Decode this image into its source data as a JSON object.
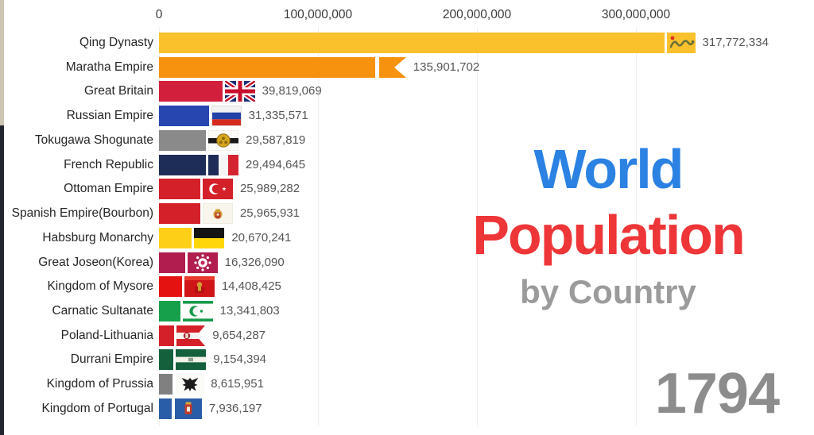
{
  "chart_data": {
    "type": "bar",
    "orientation": "horizontal",
    "title": "World Population by Country",
    "title_parts": {
      "line1": "World",
      "line2": "Population",
      "line3": "by Country"
    },
    "year": "1794",
    "axis": {
      "ticks": [
        {
          "label": "0",
          "value": 0
        },
        {
          "label": "100,000,000",
          "value": 100000000
        },
        {
          "label": "200,000,000",
          "value": 200000000
        },
        {
          "label": "300,000,000",
          "value": 300000000
        }
      ],
      "max_value": 350000000,
      "grid": true,
      "legend": "none"
    },
    "categories": [
      "Qing Dynasty",
      "Maratha Empire",
      "Great Britain",
      "Russian Empire",
      "Tokugawa Shogunate",
      "French Republic",
      "Ottoman Empire",
      "Spanish Empire(Bourbon)",
      "Habsburg Monarchy",
      "Great Joseon(Korea)",
      "Kingdom of Mysore",
      "Carnatic Sultanate",
      "Poland-Lithuania",
      "Durrani Empire",
      "Kingdom of Prussia",
      "Kingdom of Portugal"
    ],
    "values": [
      317772334,
      135901702,
      39819069,
      31335571,
      29587819,
      29494645,
      25989282,
      25965931,
      20670241,
      16326090,
      14408425,
      13341803,
      9654287,
      9154394,
      8615951,
      7936197
    ],
    "bars": [
      {
        "label": "Qing Dynasty",
        "value": 317772334,
        "value_label": "317,772,334",
        "color": "#fbc12d",
        "flag": "qing-dragon-flag"
      },
      {
        "label": "Maratha Empire",
        "value": 135901702,
        "value_label": "135,901,702",
        "color": "#f7920f",
        "flag": "maratha-swallowtail-flag"
      },
      {
        "label": "Great Britain",
        "value": 39819069,
        "value_label": "39,819,069",
        "color": "#d21f3c",
        "flag": "union-jack-flag"
      },
      {
        "label": "Russian Empire",
        "value": 31335571,
        "value_label": "31,335,571",
        "color": "#2746b0",
        "flag": "russia-tricolor-flag"
      },
      {
        "label": "Tokugawa Shogunate",
        "value": 29587819,
        "value_label": "29,587,819",
        "color": "#8a8a8a",
        "flag": "tokugawa-mon-flag"
      },
      {
        "label": "French Republic",
        "value": 29494645,
        "value_label": "29,494,645",
        "color": "#1e2d58",
        "flag": "france-tricolor-flag"
      },
      {
        "label": "Ottoman Empire",
        "value": 25989282,
        "value_label": "25,989,282",
        "color": "#d42028",
        "flag": "ottoman-crescent-flag"
      },
      {
        "label": "Spanish Empire(Bourbon)",
        "value": 25965931,
        "value_label": "25,965,931",
        "color": "#d42028",
        "flag": "spain-bourbon-flag"
      },
      {
        "label": "Habsburg Monarchy",
        "value": 20670241,
        "value_label": "20,670,241",
        "color": "#fdd017",
        "flag": "habsburg-flag"
      },
      {
        "label": "Great Joseon(Korea)",
        "value": 16326090,
        "value_label": "16,326,090",
        "color": "#b01d4e",
        "flag": "joseon-flag"
      },
      {
        "label": "Kingdom of Mysore",
        "value": 14408425,
        "value_label": "14,408,425",
        "color": "#e51212",
        "flag": "mysore-flag"
      },
      {
        "label": "Carnatic Sultanate",
        "value": 13341803,
        "value_label": "13,341,803",
        "color": "#16a04b",
        "flag": "carnatic-flag"
      },
      {
        "label": "Poland-Lithuania",
        "value": 9654287,
        "value_label": "9,654,287",
        "color": "#d42028",
        "flag": "poland-lithuania-flag"
      },
      {
        "label": "Durrani Empire",
        "value": 9154394,
        "value_label": "9,154,394",
        "color": "#14603c",
        "flag": "durrani-flag"
      },
      {
        "label": "Kingdom of Prussia",
        "value": 8615951,
        "value_label": "8,615,951",
        "color": "#808080",
        "flag": "prussia-eagle-flag"
      },
      {
        "label": "Kingdom of Portugal",
        "value": 7936197,
        "value_label": "7,936,197",
        "color": "#2a5da8",
        "flag": "portugal-flag"
      }
    ]
  },
  "colors": {
    "background": "#ffffff",
    "title_line1": "#2b82e3",
    "title_line2": "#ee3537",
    "title_line3": "#9b9b9b",
    "year": "#8c8c8c",
    "axis_text": "#3a3a3a",
    "label_text": "#262626",
    "value_text": "#565656",
    "gridline": "#efefef"
  }
}
